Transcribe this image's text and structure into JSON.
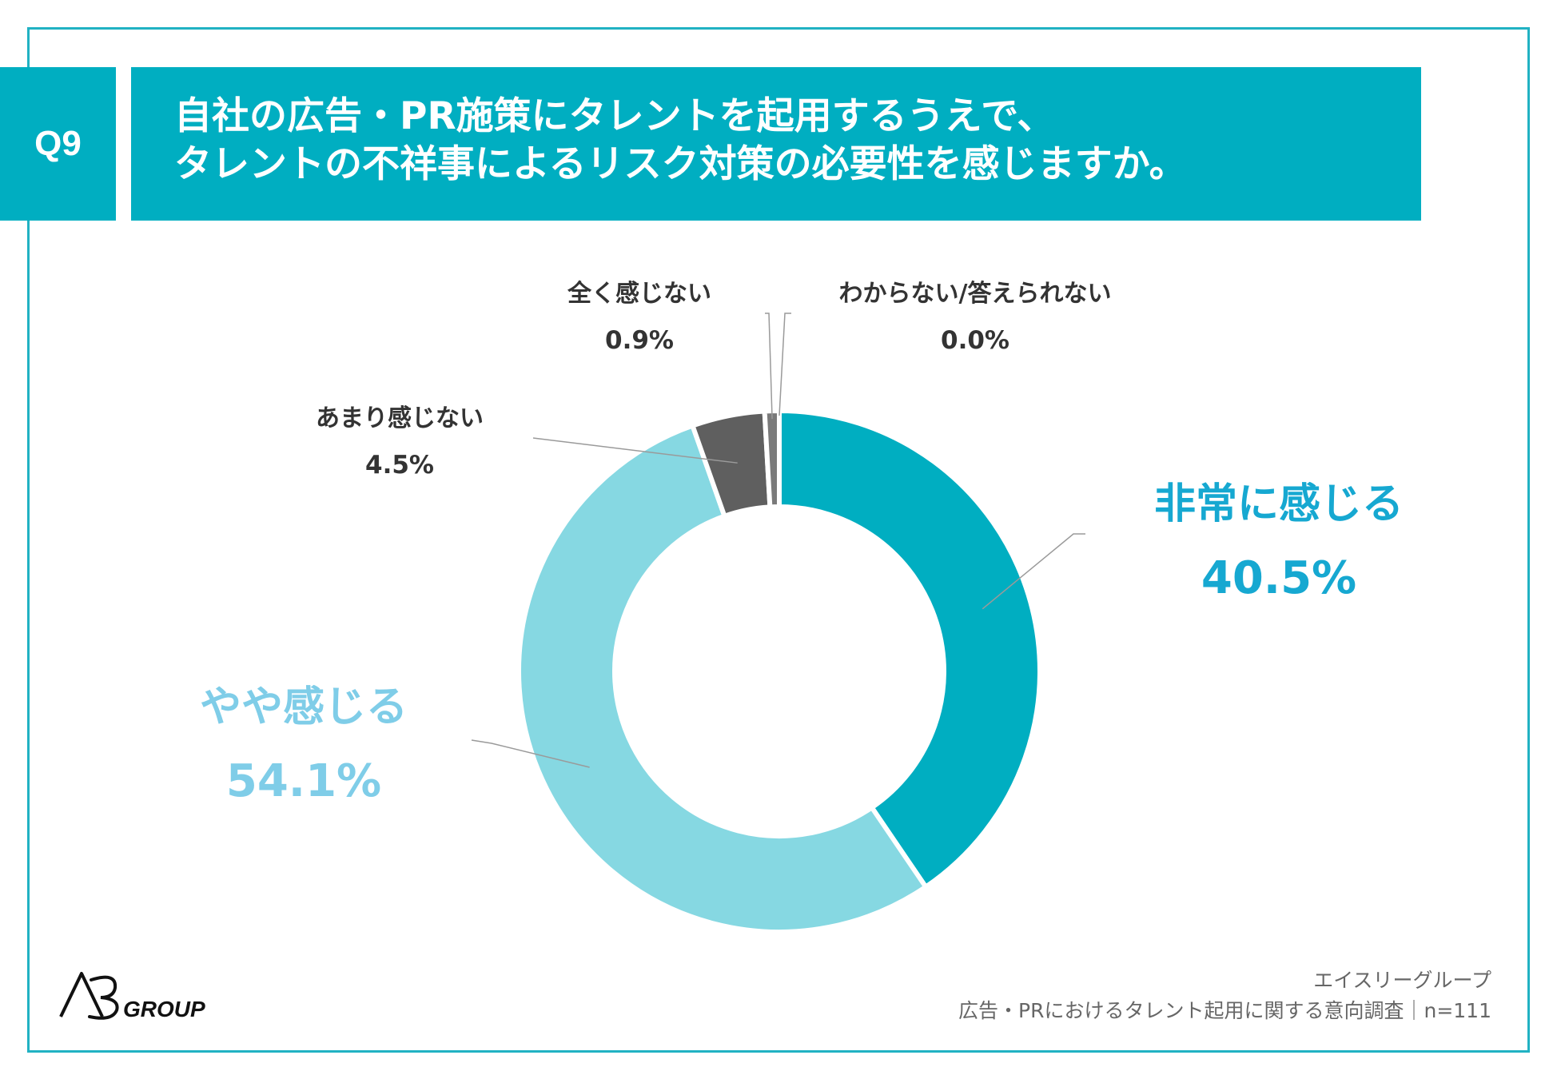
{
  "question": {
    "number": "Q9",
    "title_line1": "自社の広告・PR施策にタレントを起用するうえで、",
    "title_line2": "タレントの不祥事によるリスク対策の必要性を感じますか。"
  },
  "colors": {
    "frame": "#21b2c3",
    "title_bg": "#00aec1",
    "very": "#00aec1",
    "somewhat": "#86d8e2",
    "not_much": "#5f5f5f",
    "not_at_all": "#7a7a7a",
    "dont_know": "#9a9a9a"
  },
  "chart_data": {
    "type": "pie",
    "variant": "donut",
    "title": "自社の広告・PR施策にタレントを起用するうえで、タレントの不祥事によるリスク対策の必要性を感じますか。",
    "categories": [
      "非常に感じる",
      "やや感じる",
      "あまり感じない",
      "全く感じない",
      "わからない/答えられない"
    ],
    "values": [
      40.5,
      54.1,
      4.5,
      0.9,
      0.0
    ],
    "value_labels": [
      "40.5%",
      "54.1%",
      "4.5%",
      "0.9%",
      "0.0%"
    ],
    "unit": "%"
  },
  "source": {
    "company": "エイスリーグループ",
    "survey": "広告・PRにおけるタレント起用に関する意向調査｜n=111"
  },
  "logo": {
    "mark": "A3",
    "text": "GROUP"
  }
}
